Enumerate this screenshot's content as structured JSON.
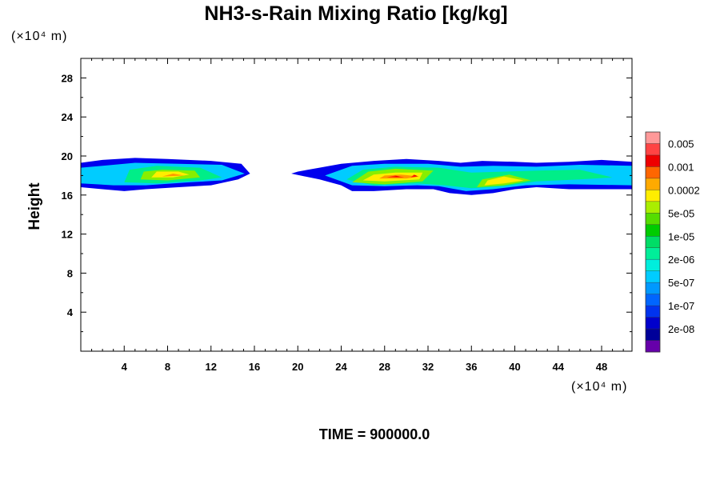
{
  "chart_data": {
    "type": "heatmap",
    "title": "NH3-s-Rain Mixing Ratio [kg/kg]",
    "ylabel": "Height",
    "x_units": "(×10⁴ m)",
    "y_units": "(×10⁴ m)",
    "xlim": [
      0,
      50.8
    ],
    "ylim": [
      0,
      30
    ],
    "x_ticks": [
      4,
      8,
      12,
      16,
      20,
      24,
      28,
      32,
      36,
      40,
      44,
      48
    ],
    "y_ticks": [
      4,
      8,
      12,
      16,
      20,
      24,
      28
    ],
    "time_label": "TIME = 900000.0",
    "colorbar": {
      "labels": [
        "0.005",
        "0.001",
        "0.0002",
        "5e-05",
        "1e-05",
        "2e-06",
        "5e-07",
        "1e-07",
        "2e-08"
      ],
      "colors": [
        "#ff9999",
        "#ff4444",
        "#ee0000",
        "#ff6600",
        "#ffaa00",
        "#ffee00",
        "#aaee00",
        "#55dd00",
        "#00cc00",
        "#00dd66",
        "#00ee99",
        "#00eedd",
        "#00ccff",
        "#0099ff",
        "#0066ff",
        "#0033ee",
        "#0000cc",
        "#000099",
        "#6600aa"
      ]
    },
    "regions": [
      {
        "level": 0,
        "polygon": [
          [
            0,
            16.8
          ],
          [
            2,
            16.6
          ],
          [
            4,
            16.4
          ],
          [
            6,
            16.6
          ],
          [
            9,
            16.8
          ],
          [
            12,
            17.0
          ],
          [
            14.5,
            17.6
          ],
          [
            15.6,
            18.2
          ],
          [
            14.8,
            19.2
          ],
          [
            12,
            19.5
          ],
          [
            8,
            19.7
          ],
          [
            5,
            19.8
          ],
          [
            2,
            19.6
          ],
          [
            0,
            19.3
          ]
        ]
      },
      {
        "level": 1,
        "polygon": [
          [
            0,
            17.2
          ],
          [
            3,
            17.0
          ],
          [
            6,
            17.0
          ],
          [
            10,
            17.3
          ],
          [
            13,
            17.5
          ],
          [
            15.1,
            18.2
          ],
          [
            13,
            19.1
          ],
          [
            9,
            19.2
          ],
          [
            5,
            19.3
          ],
          [
            2,
            19.0
          ],
          [
            0,
            18.8
          ]
        ]
      },
      {
        "level": 2,
        "polygon": [
          [
            4,
            17.3
          ],
          [
            7,
            17.2
          ],
          [
            11,
            17.5
          ],
          [
            13,
            17.8
          ],
          [
            11,
            18.8
          ],
          [
            7,
            19.0
          ],
          [
            4.5,
            18.6
          ]
        ]
      },
      {
        "level": 3,
        "polygon": [
          [
            5.5,
            17.6
          ],
          [
            8,
            17.5
          ],
          [
            11,
            17.8
          ],
          [
            10.5,
            18.5
          ],
          [
            7.5,
            18.6
          ],
          [
            5.8,
            18.4
          ]
        ]
      },
      {
        "level": 4,
        "polygon": [
          [
            6.5,
            17.8
          ],
          [
            8.5,
            17.8
          ],
          [
            10,
            18.1
          ],
          [
            9,
            18.4
          ],
          [
            7,
            18.4
          ]
        ]
      },
      {
        "level": 5,
        "polygon": [
          [
            7.5,
            17.9
          ],
          [
            9.5,
            18.0
          ],
          [
            8.5,
            18.2
          ]
        ]
      },
      {
        "level": 0,
        "polygon": [
          [
            19.4,
            18.2
          ],
          [
            22,
            17.6
          ],
          [
            24,
            17.0
          ],
          [
            25,
            16.4
          ],
          [
            27,
            16.4
          ],
          [
            30,
            16.6
          ],
          [
            32.5,
            16.6
          ],
          [
            34,
            16.2
          ],
          [
            36,
            16.0
          ],
          [
            38,
            16.2
          ],
          [
            40,
            16.6
          ],
          [
            42,
            16.8
          ],
          [
            45,
            16.6
          ],
          [
            48,
            16.6
          ],
          [
            50.8,
            16.6
          ],
          [
            50.8,
            19.4
          ],
          [
            48,
            19.6
          ],
          [
            45,
            19.4
          ],
          [
            42,
            19.3
          ],
          [
            40,
            19.4
          ],
          [
            37,
            19.5
          ],
          [
            35,
            19.3
          ],
          [
            33,
            19.5
          ],
          [
            30,
            19.7
          ],
          [
            27,
            19.5
          ],
          [
            24,
            19.2
          ],
          [
            22,
            18.8
          ],
          [
            20,
            18.4
          ]
        ]
      },
      {
        "level": 1,
        "polygon": [
          [
            22.5,
            18.0
          ],
          [
            25,
            17.0
          ],
          [
            28,
            16.9
          ],
          [
            31,
            17.0
          ],
          [
            33,
            16.9
          ],
          [
            35.5,
            16.4
          ],
          [
            38,
            16.6
          ],
          [
            41,
            17.0
          ],
          [
            45,
            17.1
          ],
          [
            50.8,
            17.0
          ],
          [
            50.8,
            19.0
          ],
          [
            46,
            19.1
          ],
          [
            42,
            18.9
          ],
          [
            38,
            19.0
          ],
          [
            35,
            18.9
          ],
          [
            32,
            19.2
          ],
          [
            28,
            19.2
          ],
          [
            25,
            19.0
          ]
        ]
      },
      {
        "level": 2,
        "polygon": [
          [
            24.5,
            17.6
          ],
          [
            27,
            17.0
          ],
          [
            31,
            17.2
          ],
          [
            33.5,
            17.0
          ],
          [
            36,
            16.7
          ],
          [
            39,
            16.9
          ],
          [
            42,
            17.4
          ],
          [
            46,
            17.6
          ],
          [
            49,
            17.8
          ],
          [
            46,
            18.6
          ],
          [
            42,
            18.5
          ],
          [
            39,
            18.4
          ],
          [
            36,
            18.3
          ],
          [
            33,
            18.8
          ],
          [
            29,
            18.9
          ],
          [
            26,
            18.6
          ]
        ]
      },
      {
        "level": 3,
        "polygon": [
          [
            25,
            17.3
          ],
          [
            28,
            17.1
          ],
          [
            31.5,
            17.4
          ],
          [
            32.5,
            18.5
          ],
          [
            29,
            18.7
          ],
          [
            26.5,
            18.4
          ]
        ]
      },
      {
        "level": 3,
        "polygon": [
          [
            36.5,
            16.8
          ],
          [
            39,
            17.0
          ],
          [
            41.5,
            17.5
          ],
          [
            39.5,
            18.1
          ],
          [
            37,
            17.6
          ]
        ]
      },
      {
        "level": 4,
        "polygon": [
          [
            26,
            17.5
          ],
          [
            28,
            17.4
          ],
          [
            31.2,
            17.6
          ],
          [
            31.5,
            18.3
          ],
          [
            29,
            18.3
          ],
          [
            27,
            18.1
          ]
        ]
      },
      {
        "level": 4,
        "polygon": [
          [
            37.2,
            17.0
          ],
          [
            39,
            17.2
          ],
          [
            40.8,
            17.5
          ],
          [
            39,
            17.9
          ],
          [
            37.5,
            17.5
          ]
        ]
      },
      {
        "level": 5,
        "polygon": [
          [
            27.5,
            17.7
          ],
          [
            30,
            17.7
          ],
          [
            31.2,
            17.9
          ],
          [
            29.5,
            18.1
          ],
          [
            28,
            18.0
          ]
        ]
      },
      {
        "level": 6,
        "polygon": [
          [
            28.2,
            17.8
          ],
          [
            29.8,
            17.8
          ],
          [
            29,
            18.0
          ]
        ]
      },
      {
        "level": 6,
        "polygon": [
          [
            30.4,
            17.8
          ],
          [
            31.1,
            17.9
          ],
          [
            30.7,
            18.1
          ]
        ]
      },
      {
        "level": 7,
        "polygon": [
          [
            28.8,
            17.85
          ],
          [
            29.4,
            17.85
          ],
          [
            29.1,
            17.95
          ]
        ]
      },
      {
        "level": 7,
        "polygon": [
          [
            30.6,
            17.9
          ],
          [
            31.0,
            17.95
          ],
          [
            30.8,
            18.05
          ]
        ]
      }
    ]
  }
}
